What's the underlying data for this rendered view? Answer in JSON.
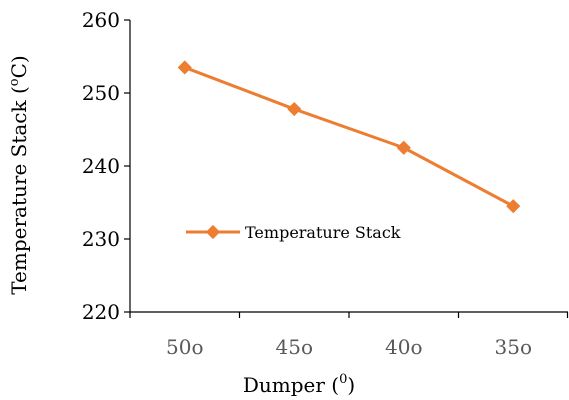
{
  "chart_data": {
    "type": "line",
    "categories": [
      "50o",
      "45o",
      "40o",
      "35o"
    ],
    "series": [
      {
        "name": "Temperature Stack",
        "values": [
          253.5,
          247.8,
          242.5,
          234.5
        ],
        "color": "#ED7D31",
        "marker": "diamond"
      }
    ],
    "ylabel": "Temperature Stack (",
    "ylabel_sup": "o",
    "ylabel_end": "C)",
    "xlabel": "Dumper (",
    "xlabel_sup": "0",
    "xlabel_end": ")",
    "ylim": [
      220,
      260
    ],
    "yticks": [
      220,
      230,
      240,
      250,
      260
    ],
    "grid": false,
    "legend_position": "inside-left"
  }
}
